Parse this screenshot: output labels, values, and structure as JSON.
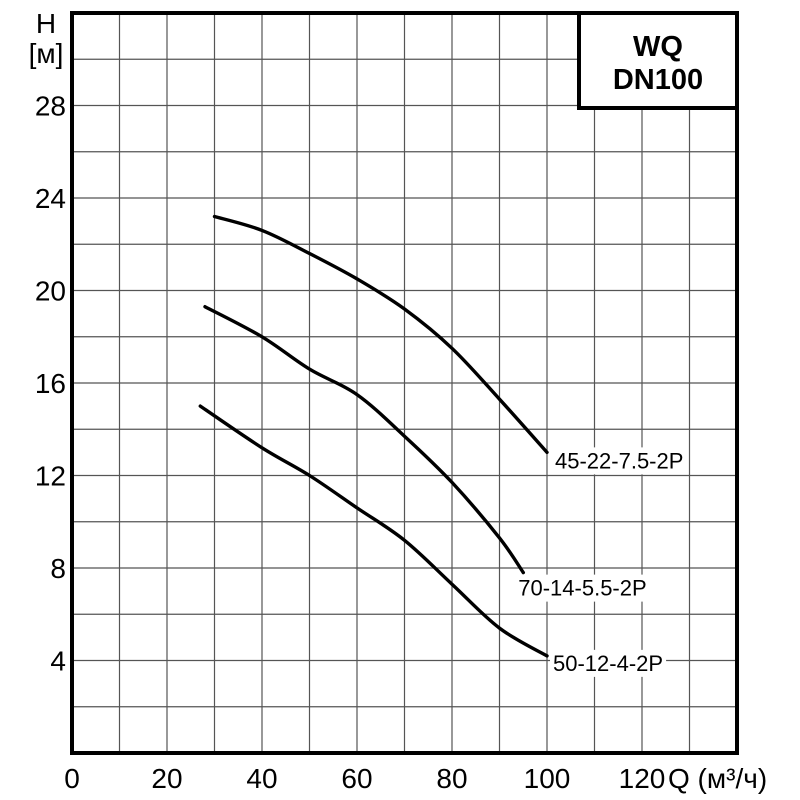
{
  "title_box": {
    "line1": "WQ",
    "line2": "DN100"
  },
  "axis_titles": {
    "y_line1": "H",
    "y_line2": "[м]",
    "x_label": "Q (м³/ч)"
  },
  "chart_data": {
    "type": "line",
    "title": "WQ DN100",
    "xlabel": "Q (м³/ч)",
    "ylabel": "H [м]",
    "xlim": [
      0,
      140
    ],
    "ylim": [
      0,
      32
    ],
    "x_tick_labels": [
      0,
      20,
      40,
      60,
      80,
      100,
      120
    ],
    "x_minor_step": 10,
    "y_tick_labels": [
      4,
      8,
      12,
      16,
      20,
      24,
      28
    ],
    "y_minor_step": 2,
    "grid": true,
    "legend_position": "inline-labels",
    "series": [
      {
        "name": "45-22-7.5-2P",
        "points": [
          [
            30,
            23.2
          ],
          [
            40,
            22.6
          ],
          [
            50,
            21.6
          ],
          [
            60,
            20.5
          ],
          [
            70,
            19.2
          ],
          [
            80,
            17.5
          ],
          [
            90,
            15.3
          ],
          [
            100,
            13.0
          ]
        ],
        "label_offset": [
          8,
          8
        ]
      },
      {
        "name": "70-14-5.5-2P",
        "points": [
          [
            28,
            19.3
          ],
          [
            40,
            18.0
          ],
          [
            50,
            16.6
          ],
          [
            60,
            15.5
          ],
          [
            70,
            13.7
          ],
          [
            80,
            11.7
          ],
          [
            90,
            9.3
          ],
          [
            95,
            7.8
          ]
        ],
        "label_offset": [
          -5,
          15
        ]
      },
      {
        "name": "50-12-4-2P",
        "points": [
          [
            27,
            15.0
          ],
          [
            40,
            13.2
          ],
          [
            50,
            12.0
          ],
          [
            60,
            10.6
          ],
          [
            70,
            9.2
          ],
          [
            80,
            7.3
          ],
          [
            90,
            5.4
          ],
          [
            100,
            4.2
          ]
        ],
        "label_offset": [
          6,
          7
        ]
      }
    ],
    "colors": {
      "curve": "#000000",
      "grid": "#555555",
      "frame": "#000000",
      "background": "#ffffff",
      "label_background": "#ffffff"
    }
  }
}
